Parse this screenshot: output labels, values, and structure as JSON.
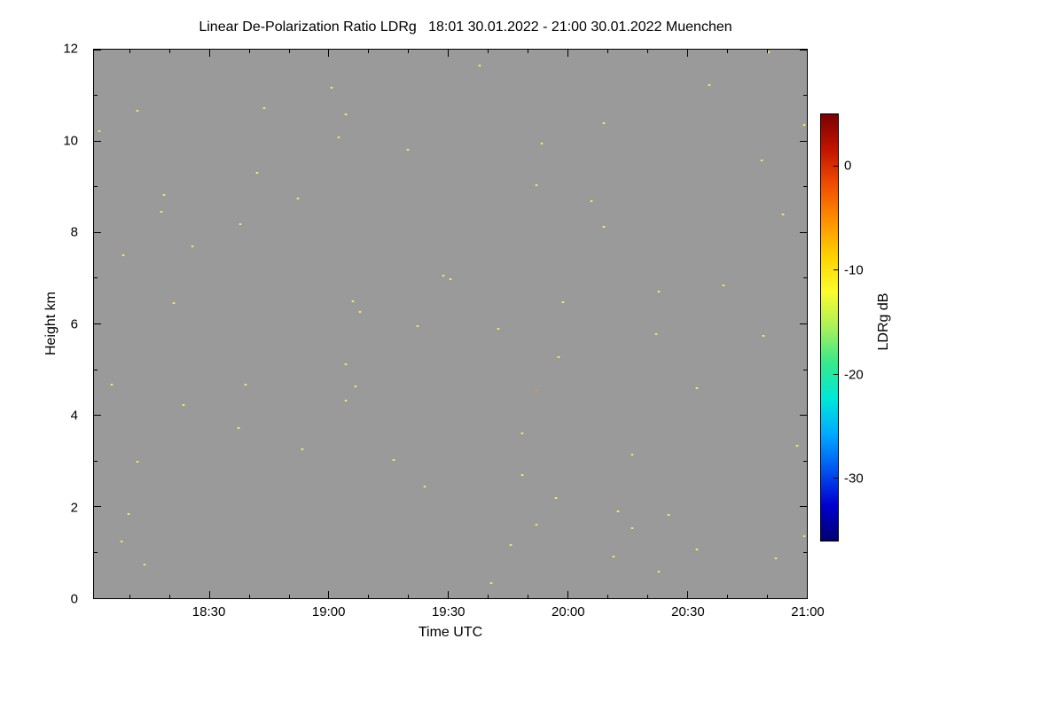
{
  "chart_data": {
    "type": "scatter",
    "title": "Linear De-Polarization Ratio LDRg   18:01 30.01.2022 - 21:00 30.01.2022 Muenchen",
    "xlabel": "Time UTC",
    "ylabel": "Height km",
    "plot_background": "#9a9a9a",
    "grid": false,
    "x_axis": {
      "min_hours": 18.0167,
      "max_hours": 21.0,
      "tick_hours": [
        18.5,
        19.0,
        19.5,
        20.0,
        20.5,
        21.0
      ],
      "tick_labels": [
        "18:30",
        "19:00",
        "19:30",
        "20:00",
        "20:30",
        "21:00"
      ]
    },
    "y_axis": {
      "min": 0,
      "max": 12,
      "ticks": [
        0,
        2,
        4,
        6,
        8,
        10,
        12
      ]
    },
    "point_colors": {
      "yellow": "#f3ee58",
      "orange": "#ef8f3c"
    },
    "points": [
      [
        19.63,
        11.65,
        "y"
      ],
      [
        20.84,
        11.94,
        "y"
      ],
      [
        20.59,
        11.22,
        "y"
      ],
      [
        19.01,
        11.17,
        "y"
      ],
      [
        18.73,
        10.72,
        "y"
      ],
      [
        18.2,
        10.66,
        "y"
      ],
      [
        19.07,
        10.58,
        "y"
      ],
      [
        20.99,
        10.35,
        "y"
      ],
      [
        20.15,
        10.39,
        "y"
      ],
      [
        18.04,
        10.21,
        "y"
      ],
      [
        19.04,
        10.08,
        "y"
      ],
      [
        19.33,
        9.81,
        "y"
      ],
      [
        19.89,
        9.94,
        "y"
      ],
      [
        20.81,
        9.57,
        "y"
      ],
      [
        18.7,
        9.3,
        "y"
      ],
      [
        19.87,
        9.03,
        "y"
      ],
      [
        18.31,
        8.82,
        "y"
      ],
      [
        18.87,
        8.74,
        "y"
      ],
      [
        20.1,
        8.68,
        "y"
      ],
      [
        18.3,
        8.45,
        "y"
      ],
      [
        20.9,
        8.39,
        "y"
      ],
      [
        18.63,
        8.19,
        "y"
      ],
      [
        20.15,
        8.12,
        "y"
      ],
      [
        18.43,
        7.69,
        "y"
      ],
      [
        18.14,
        7.5,
        "y"
      ],
      [
        19.48,
        7.05,
        "y"
      ],
      [
        19.51,
        6.97,
        "y"
      ],
      [
        20.65,
        6.85,
        "y"
      ],
      [
        20.38,
        6.7,
        "y"
      ],
      [
        19.1,
        6.5,
        "y"
      ],
      [
        19.98,
        6.48,
        "y"
      ],
      [
        18.35,
        6.45,
        "y"
      ],
      [
        19.13,
        6.27,
        "y"
      ],
      [
        19.37,
        5.96,
        "y"
      ],
      [
        19.71,
        5.9,
        "y"
      ],
      [
        20.37,
        5.77,
        "y"
      ],
      [
        20.82,
        5.73,
        "y"
      ],
      [
        19.07,
        5.11,
        "y"
      ],
      [
        19.96,
        5.28,
        "y"
      ],
      [
        18.09,
        4.68,
        "y"
      ],
      [
        18.65,
        4.68,
        "y"
      ],
      [
        19.11,
        4.64,
        "y"
      ],
      [
        19.87,
        4.56,
        "o"
      ],
      [
        20.54,
        4.6,
        "y"
      ],
      [
        19.07,
        4.33,
        "y"
      ],
      [
        18.39,
        4.23,
        "y"
      ],
      [
        18.62,
        3.73,
        "y"
      ],
      [
        19.81,
        3.61,
        "y"
      ],
      [
        20.96,
        3.34,
        "y"
      ],
      [
        18.89,
        3.26,
        "y"
      ],
      [
        20.27,
        3.15,
        "y"
      ],
      [
        19.27,
        3.03,
        "y"
      ],
      [
        18.2,
        2.99,
        "y"
      ],
      [
        19.81,
        2.7,
        "y"
      ],
      [
        19.4,
        2.45,
        "y"
      ],
      [
        19.95,
        2.19,
        "y"
      ],
      [
        18.16,
        1.84,
        "y"
      ],
      [
        20.21,
        1.9,
        "y"
      ],
      [
        20.42,
        1.82,
        "y"
      ],
      [
        19.87,
        1.61,
        "y"
      ],
      [
        20.27,
        1.53,
        "y"
      ],
      [
        20.99,
        1.36,
        "y"
      ],
      [
        19.76,
        1.17,
        "y"
      ],
      [
        20.54,
        1.07,
        "y"
      ],
      [
        20.19,
        0.91,
        "y"
      ],
      [
        20.87,
        0.87,
        "y"
      ],
      [
        20.38,
        0.58,
        "y"
      ],
      [
        19.68,
        0.33,
        "y"
      ],
      [
        18.13,
        1.25,
        "y"
      ],
      [
        18.23,
        0.73,
        "y"
      ]
    ],
    "colorbar": {
      "label": "LDRg dB",
      "min": -36,
      "max": 5,
      "ticks": [
        0,
        -10,
        -20,
        -30
      ],
      "gradient": [
        "#7a0000",
        "#c21500",
        "#f04f00",
        "#ff9000",
        "#ffd200",
        "#fcfc2d",
        "#a8f05a",
        "#37e88c",
        "#00e8d8",
        "#00aaff",
        "#0055f0",
        "#0000d0",
        "#000070"
      ]
    }
  }
}
